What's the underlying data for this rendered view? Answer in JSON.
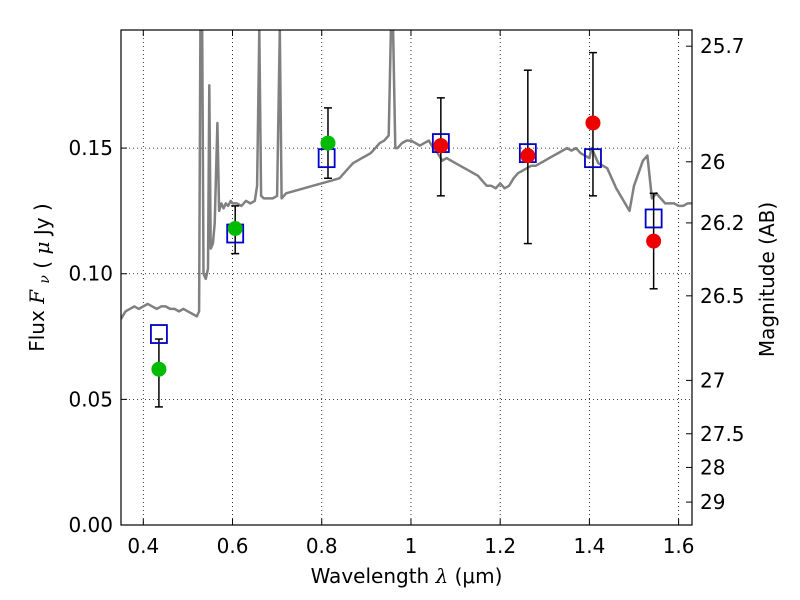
{
  "chart_data": {
    "type": "scatter",
    "xlabel_text": "Wavelength",
    "xlabel_symbol": "λ",
    "xlabel_unit": "(μm)",
    "ylabel_text": "Flux",
    "ylabel_symbol": "F",
    "ylabel_subscript": "ν",
    "ylabel_unit_open": "(",
    "ylabel_unit_symbol": "μ",
    "ylabel_unit_rest": "Jy )",
    "y2label": "Magnitude (AB)",
    "xlim": [
      0.35,
      1.63
    ],
    "ylim": [
      0.0,
      0.197
    ],
    "grid": true,
    "x_ticks": [
      0.4,
      0.6,
      0.8,
      1.0,
      1.2,
      1.4,
      1.6
    ],
    "x_tick_labels": [
      "0.4",
      "0.6",
      "0.8",
      "1",
      "1.2",
      "1.4",
      "1.6"
    ],
    "y_ticks": [
      0.0,
      0.05,
      0.1,
      0.15
    ],
    "y_tick_labels": [
      "0.00",
      "0.05",
      "0.10",
      "0.15"
    ],
    "y2_ticks": [
      {
        "mag": 25.7,
        "label": "25.7"
      },
      {
        "mag": 26.0,
        "label": "26"
      },
      {
        "mag": 26.2,
        "label": "26.2"
      },
      {
        "mag": 26.5,
        "label": "26.5"
      },
      {
        "mag": 27.0,
        "label": "27"
      },
      {
        "mag": 27.5,
        "label": "27.5"
      },
      {
        "mag": 28.0,
        "label": "28"
      },
      {
        "mag": 29.0,
        "label": "29"
      }
    ],
    "colors": {
      "spectrum": "#808080",
      "model": "#0000cc",
      "green": "#00bb00",
      "red": "#ee0000",
      "error": "#000000",
      "grid": "#000000"
    },
    "observed": [
      {
        "x": 0.435,
        "y": 0.062,
        "err_lo": 0.047,
        "err_hi": 0.074,
        "color": "green"
      },
      {
        "x": 0.606,
        "y": 0.118,
        "err_lo": 0.108,
        "err_hi": 0.127,
        "color": "green"
      },
      {
        "x": 0.814,
        "y": 0.152,
        "err_lo": 0.138,
        "err_hi": 0.166,
        "color": "green"
      },
      {
        "x": 1.067,
        "y": 0.151,
        "err_lo": 0.131,
        "err_hi": 0.17,
        "color": "red"
      },
      {
        "x": 1.262,
        "y": 0.147,
        "err_lo": 0.112,
        "err_hi": 0.181,
        "color": "red"
      },
      {
        "x": 1.408,
        "y": 0.16,
        "err_lo": 0.131,
        "err_hi": 0.188,
        "color": "red"
      },
      {
        "x": 1.544,
        "y": 0.113,
        "err_lo": 0.094,
        "err_hi": 0.132,
        "color": "red"
      }
    ],
    "model_points": [
      {
        "x": 0.435,
        "y": 0.076
      },
      {
        "x": 0.606,
        "y": 0.116
      },
      {
        "x": 0.811,
        "y": 0.146
      },
      {
        "x": 1.067,
        "y": 0.152
      },
      {
        "x": 1.262,
        "y": 0.148
      },
      {
        "x": 1.408,
        "y": 0.146
      },
      {
        "x": 1.544,
        "y": 0.122
      }
    ],
    "spectrum": [
      [
        0.35,
        0.082
      ],
      [
        0.36,
        0.085
      ],
      [
        0.37,
        0.086
      ],
      [
        0.38,
        0.087
      ],
      [
        0.39,
        0.086
      ],
      [
        0.4,
        0.087
      ],
      [
        0.41,
        0.088
      ],
      [
        0.42,
        0.087
      ],
      [
        0.43,
        0.086
      ],
      [
        0.44,
        0.087
      ],
      [
        0.45,
        0.087
      ],
      [
        0.46,
        0.086
      ],
      [
        0.47,
        0.086
      ],
      [
        0.48,
        0.085
      ],
      [
        0.49,
        0.086
      ],
      [
        0.5,
        0.085
      ],
      [
        0.51,
        0.084
      ],
      [
        0.52,
        0.083
      ],
      [
        0.525,
        0.085
      ],
      [
        0.528,
        0.197
      ],
      [
        0.532,
        0.197
      ],
      [
        0.535,
        0.1
      ],
      [
        0.54,
        0.098
      ],
      [
        0.545,
        0.102
      ],
      [
        0.548,
        0.175
      ],
      [
        0.551,
        0.11
      ],
      [
        0.556,
        0.112
      ],
      [
        0.56,
        0.12
      ],
      [
        0.566,
        0.16
      ],
      [
        0.57,
        0.125
      ],
      [
        0.575,
        0.128
      ],
      [
        0.58,
        0.126
      ],
      [
        0.585,
        0.128
      ],
      [
        0.59,
        0.127
      ],
      [
        0.596,
        0.129
      ],
      [
        0.6,
        0.128
      ],
      [
        0.61,
        0.128
      ],
      [
        0.62,
        0.127
      ],
      [
        0.63,
        0.129
      ],
      [
        0.64,
        0.128
      ],
      [
        0.65,
        0.129
      ],
      [
        0.655,
        0.135
      ],
      [
        0.66,
        0.197
      ],
      [
        0.664,
        0.131
      ],
      [
        0.67,
        0.13
      ],
      [
        0.69,
        0.13
      ],
      [
        0.7,
        0.131
      ],
      [
        0.706,
        0.197
      ],
      [
        0.71,
        0.13
      ],
      [
        0.72,
        0.132
      ],
      [
        0.74,
        0.133
      ],
      [
        0.76,
        0.134
      ],
      [
        0.78,
        0.135
      ],
      [
        0.8,
        0.136
      ],
      [
        0.82,
        0.137
      ],
      [
        0.84,
        0.138
      ],
      [
        0.85,
        0.14
      ],
      [
        0.86,
        0.142
      ],
      [
        0.87,
        0.144
      ],
      [
        0.88,
        0.145
      ],
      [
        0.89,
        0.146
      ],
      [
        0.9,
        0.147
      ],
      [
        0.91,
        0.148
      ],
      [
        0.92,
        0.15
      ],
      [
        0.93,
        0.152
      ],
      [
        0.94,
        0.153
      ],
      [
        0.95,
        0.155
      ],
      [
        0.955,
        0.197
      ],
      [
        0.96,
        0.197
      ],
      [
        0.965,
        0.15
      ],
      [
        0.97,
        0.15
      ],
      [
        0.98,
        0.152
      ],
      [
        0.99,
        0.153
      ],
      [
        1.0,
        0.153
      ],
      [
        1.01,
        0.152
      ],
      [
        1.02,
        0.151
      ],
      [
        1.03,
        0.152
      ],
      [
        1.04,
        0.153
      ],
      [
        1.05,
        0.15
      ],
      [
        1.06,
        0.148
      ],
      [
        1.07,
        0.145
      ],
      [
        1.08,
        0.146
      ],
      [
        1.09,
        0.145
      ],
      [
        1.1,
        0.144
      ],
      [
        1.11,
        0.143
      ],
      [
        1.12,
        0.142
      ],
      [
        1.13,
        0.141
      ],
      [
        1.14,
        0.14
      ],
      [
        1.15,
        0.139
      ],
      [
        1.16,
        0.137
      ],
      [
        1.17,
        0.135
      ],
      [
        1.18,
        0.135
      ],
      [
        1.19,
        0.134
      ],
      [
        1.2,
        0.136
      ],
      [
        1.21,
        0.134
      ],
      [
        1.22,
        0.135
      ],
      [
        1.23,
        0.138
      ],
      [
        1.24,
        0.14
      ],
      [
        1.25,
        0.141
      ],
      [
        1.26,
        0.142
      ],
      [
        1.27,
        0.143
      ],
      [
        1.28,
        0.143
      ],
      [
        1.29,
        0.144
      ],
      [
        1.3,
        0.145
      ],
      [
        1.31,
        0.146
      ],
      [
        1.32,
        0.147
      ],
      [
        1.33,
        0.148
      ],
      [
        1.34,
        0.149
      ],
      [
        1.35,
        0.15
      ],
      [
        1.36,
        0.149
      ],
      [
        1.37,
        0.15
      ],
      [
        1.38,
        0.148
      ],
      [
        1.39,
        0.147
      ],
      [
        1.4,
        0.146
      ],
      [
        1.405,
        0.15
      ],
      [
        1.41,
        0.148
      ],
      [
        1.42,
        0.144
      ],
      [
        1.43,
        0.143
      ],
      [
        1.44,
        0.142
      ],
      [
        1.45,
        0.138
      ],
      [
        1.46,
        0.134
      ],
      [
        1.47,
        0.131
      ],
      [
        1.48,
        0.128
      ],
      [
        1.49,
        0.125
      ],
      [
        1.5,
        0.135
      ],
      [
        1.51,
        0.14
      ],
      [
        1.52,
        0.145
      ],
      [
        1.53,
        0.147
      ],
      [
        1.54,
        0.13
      ],
      [
        1.55,
        0.132
      ],
      [
        1.56,
        0.13
      ],
      [
        1.57,
        0.128
      ],
      [
        1.58,
        0.128
      ],
      [
        1.59,
        0.128
      ],
      [
        1.6,
        0.127
      ],
      [
        1.61,
        0.127
      ],
      [
        1.62,
        0.128
      ],
      [
        1.63,
        0.128
      ]
    ]
  }
}
